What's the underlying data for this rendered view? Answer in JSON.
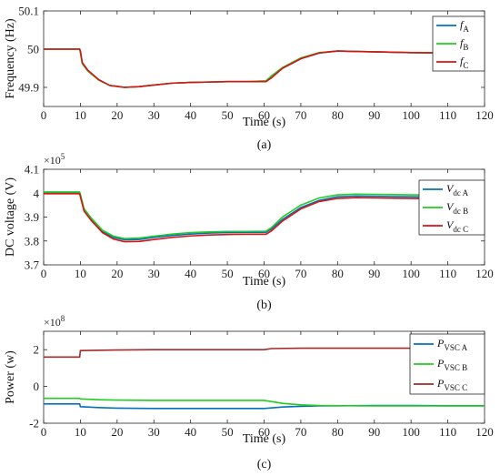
{
  "chart_data": [
    {
      "type": "line",
      "xlabel": "Time (s)",
      "ylabel": "Frequency (Hz)",
      "caption": "(a)",
      "xlim": [
        0,
        120
      ],
      "ylim": [
        49.85,
        50.1
      ],
      "xticks": [
        "0",
        "10",
        "20",
        "30",
        "40",
        "50",
        "60",
        "70",
        "80",
        "90",
        "100",
        "110",
        "120"
      ],
      "yticks": [
        {
          "v": 49.9,
          "t": "49.9"
        },
        {
          "v": 50,
          "t": "50"
        },
        {
          "v": 50.1,
          "t": "50.1"
        }
      ],
      "legend_position": "top-right",
      "series": [
        {
          "name": "f",
          "sub": "A",
          "color": "#0072BD",
          "points": [
            [
              0,
              50
            ],
            [
              9.8,
              50
            ],
            [
              10,
              49.995
            ],
            [
              10.5,
              49.965
            ],
            [
              12,
              49.945
            ],
            [
              15,
              49.92
            ],
            [
              18,
              49.905
            ],
            [
              22,
              49.9
            ],
            [
              26,
              49.902
            ],
            [
              30,
              49.906
            ],
            [
              35,
              49.911
            ],
            [
              40,
              49.913
            ],
            [
              45,
              49.914
            ],
            [
              50,
              49.915
            ],
            [
              55,
              49.915
            ],
            [
              60.5,
              49.915
            ],
            [
              62,
              49.925
            ],
            [
              65,
              49.95
            ],
            [
              70,
              49.975
            ],
            [
              75,
              49.99
            ],
            [
              80,
              49.995
            ],
            [
              85,
              49.994
            ],
            [
              90,
              49.993
            ],
            [
              100,
              49.991
            ],
            [
              110,
              49.99
            ],
            [
              120,
              49.99
            ]
          ]
        },
        {
          "name": "f",
          "sub": "B",
          "color": "#22CC22",
          "points": [
            [
              0,
              50
            ],
            [
              9.8,
              50
            ],
            [
              10,
              49.99
            ],
            [
              10.5,
              49.962
            ],
            [
              12,
              49.943
            ],
            [
              15,
              49.919
            ],
            [
              18,
              49.905
            ],
            [
              22,
              49.9
            ],
            [
              26,
              49.902
            ],
            [
              30,
              49.906
            ],
            [
              35,
              49.911
            ],
            [
              40,
              49.913
            ],
            [
              45,
              49.914
            ],
            [
              50,
              49.915
            ],
            [
              55,
              49.915
            ],
            [
              60.5,
              49.917
            ],
            [
              62,
              49.93
            ],
            [
              65,
              49.952
            ],
            [
              70,
              49.977
            ],
            [
              75,
              49.991
            ],
            [
              80,
              49.995
            ],
            [
              85,
              49.994
            ],
            [
              90,
              49.993
            ],
            [
              100,
              49.991
            ],
            [
              110,
              49.99
            ],
            [
              120,
              49.99
            ]
          ]
        },
        {
          "name": "f",
          "sub": "C",
          "color": "#DD1111",
          "points": [
            [
              0,
              50
            ],
            [
              9.8,
              50
            ],
            [
              10,
              49.995
            ],
            [
              10.5,
              49.965
            ],
            [
              12,
              49.945
            ],
            [
              15,
              49.92
            ],
            [
              18,
              49.905
            ],
            [
              22,
              49.9
            ],
            [
              26,
              49.902
            ],
            [
              30,
              49.906
            ],
            [
              35,
              49.911
            ],
            [
              40,
              49.913
            ],
            [
              45,
              49.914
            ],
            [
              50,
              49.915
            ],
            [
              55,
              49.915
            ],
            [
              60.5,
              49.915
            ],
            [
              62,
              49.925
            ],
            [
              65,
              49.95
            ],
            [
              70,
              49.975
            ],
            [
              75,
              49.99
            ],
            [
              80,
              49.995
            ],
            [
              85,
              49.994
            ],
            [
              90,
              49.993
            ],
            [
              100,
              49.991
            ],
            [
              110,
              49.99
            ],
            [
              120,
              49.99
            ]
          ]
        }
      ]
    },
    {
      "type": "line",
      "xlabel": "Time (s)",
      "ylabel": "DC voltage (V)",
      "caption": "(b)",
      "multiplier_base": "×10",
      "multiplier_exp": "5",
      "xlim": [
        0,
        120
      ],
      "ylim": [
        3.7,
        4.1
      ],
      "xticks": [
        "0",
        "10",
        "20",
        "30",
        "40",
        "50",
        "60",
        "70",
        "80",
        "90",
        "100",
        "110",
        "120"
      ],
      "yticks": [
        {
          "v": 3.7,
          "t": "3.7"
        },
        {
          "v": 3.8,
          "t": "3.8"
        },
        {
          "v": 3.9,
          "t": "3.9"
        },
        {
          "v": 4.0,
          "t": "4"
        },
        {
          "v": 4.1,
          "t": "4.1"
        }
      ],
      "legend_position": "bottom-right",
      "series": [
        {
          "name": "V",
          "sub": "dc A",
          "color": "#0072BD",
          "points": [
            [
              0,
              4.0
            ],
            [
              9.8,
              4.0
            ],
            [
              10,
              3.99
            ],
            [
              11,
              3.93
            ],
            [
              13,
              3.89
            ],
            [
              16,
              3.84
            ],
            [
              19,
              3.815
            ],
            [
              22,
              3.805
            ],
            [
              26,
              3.806
            ],
            [
              30,
              3.815
            ],
            [
              35,
              3.823
            ],
            [
              40,
              3.829
            ],
            [
              45,
              3.833
            ],
            [
              50,
              3.835
            ],
            [
              55,
              3.836
            ],
            [
              60.5,
              3.836
            ],
            [
              62,
              3.85
            ],
            [
              65,
              3.89
            ],
            [
              70,
              3.94
            ],
            [
              75,
              3.97
            ],
            [
              80,
              3.985
            ],
            [
              85,
              3.988
            ],
            [
              90,
              3.987
            ],
            [
              100,
              3.985
            ],
            [
              110,
              3.983
            ],
            [
              120,
              3.982
            ]
          ]
        },
        {
          "name": "V",
          "sub": "dc B",
          "color": "#22CC22",
          "points": [
            [
              0,
              4.005
            ],
            [
              9.8,
              4.005
            ],
            [
              10,
              3.995
            ],
            [
              11,
              3.935
            ],
            [
              13,
              3.895
            ],
            [
              16,
              3.845
            ],
            [
              19,
              3.82
            ],
            [
              22,
              3.81
            ],
            [
              26,
              3.812
            ],
            [
              30,
              3.82
            ],
            [
              35,
              3.829
            ],
            [
              40,
              3.835
            ],
            [
              45,
              3.838
            ],
            [
              50,
              3.84
            ],
            [
              55,
              3.84
            ],
            [
              60.5,
              3.841
            ],
            [
              62,
              3.856
            ],
            [
              65,
              3.9
            ],
            [
              70,
              3.95
            ],
            [
              75,
              3.98
            ],
            [
              80,
              3.993
            ],
            [
              85,
              3.996
            ],
            [
              90,
              3.995
            ],
            [
              100,
              3.993
            ],
            [
              110,
              3.991
            ],
            [
              120,
              3.99
            ]
          ]
        },
        {
          "name": "V",
          "sub": "dc C",
          "color": "#DD1111",
          "points": [
            [
              0,
              3.998
            ],
            [
              9.8,
              3.998
            ],
            [
              10,
              3.985
            ],
            [
              11,
              3.925
            ],
            [
              13,
              3.885
            ],
            [
              16,
              3.835
            ],
            [
              19,
              3.808
            ],
            [
              22,
              3.797
            ],
            [
              26,
              3.798
            ],
            [
              30,
              3.806
            ],
            [
              35,
              3.815
            ],
            [
              40,
              3.821
            ],
            [
              45,
              3.825
            ],
            [
              50,
              3.827
            ],
            [
              55,
              3.828
            ],
            [
              60.5,
              3.828
            ],
            [
              62,
              3.842
            ],
            [
              65,
              3.883
            ],
            [
              70,
              3.934
            ],
            [
              75,
              3.965
            ],
            [
              80,
              3.978
            ],
            [
              85,
              3.981
            ],
            [
              90,
              3.98
            ],
            [
              100,
              3.978
            ],
            [
              110,
              3.976
            ],
            [
              120,
              3.975
            ]
          ]
        }
      ]
    },
    {
      "type": "line",
      "xlabel": "Time (s)",
      "ylabel": "Power (w)",
      "caption": "(c)",
      "multiplier_base": "×10",
      "multiplier_exp": "8",
      "xlim": [
        0,
        120
      ],
      "ylim": [
        -2,
        3
      ],
      "xticks": [
        "0",
        "10",
        "20",
        "30",
        "40",
        "50",
        "60",
        "70",
        "80",
        "90",
        "100",
        "110",
        "120"
      ],
      "yticks": [
        {
          "v": -2,
          "t": "-2"
        },
        {
          "v": 0,
          "t": "0"
        },
        {
          "v": 2,
          "t": "2"
        }
      ],
      "legend_position": "right",
      "series": [
        {
          "name": "P",
          "sub": "VSC A",
          "color": "#0072BD",
          "points": [
            [
              0,
              -0.95
            ],
            [
              9.8,
              -0.95
            ],
            [
              10,
              -1.1
            ],
            [
              15,
              -1.15
            ],
            [
              20,
              -1.18
            ],
            [
              30,
              -1.2
            ],
            [
              40,
              -1.2
            ],
            [
              50,
              -1.2
            ],
            [
              60,
              -1.2
            ],
            [
              62,
              -1.17
            ],
            [
              65,
              -1.12
            ],
            [
              70,
              -1.08
            ],
            [
              75,
              -1.06
            ],
            [
              80,
              -1.05
            ],
            [
              90,
              -1.04
            ],
            [
              100,
              -1.04
            ],
            [
              110,
              -1.05
            ],
            [
              120,
              -1.05
            ]
          ]
        },
        {
          "name": "P",
          "sub": "VSC B",
          "color": "#22CC22",
          "points": [
            [
              0,
              -0.65
            ],
            [
              9.8,
              -0.65
            ],
            [
              10,
              -0.68
            ],
            [
              15,
              -0.72
            ],
            [
              20,
              -0.74
            ],
            [
              30,
              -0.76
            ],
            [
              40,
              -0.76
            ],
            [
              50,
              -0.76
            ],
            [
              60,
              -0.76
            ],
            [
              62,
              -0.82
            ],
            [
              65,
              -0.92
            ],
            [
              70,
              -1.0
            ],
            [
              75,
              -1.04
            ],
            [
              80,
              -1.05
            ],
            [
              90,
              -1.06
            ],
            [
              100,
              -1.06
            ],
            [
              110,
              -1.06
            ],
            [
              120,
              -1.06
            ]
          ]
        },
        {
          "name": "P",
          "sub": "VSC C",
          "color": "#A52A2A",
          "points": [
            [
              0,
              1.6
            ],
            [
              9.8,
              1.6
            ],
            [
              10,
              1.95
            ],
            [
              20,
              1.98
            ],
            [
              30,
              2.0
            ],
            [
              40,
              2.0
            ],
            [
              50,
              2.0
            ],
            [
              60,
              2.0
            ],
            [
              62,
              2.06
            ],
            [
              70,
              2.08
            ],
            [
              80,
              2.08
            ],
            [
              90,
              2.08
            ],
            [
              100,
              2.08
            ],
            [
              110,
              2.08
            ],
            [
              120,
              2.08
            ]
          ]
        }
      ]
    }
  ]
}
